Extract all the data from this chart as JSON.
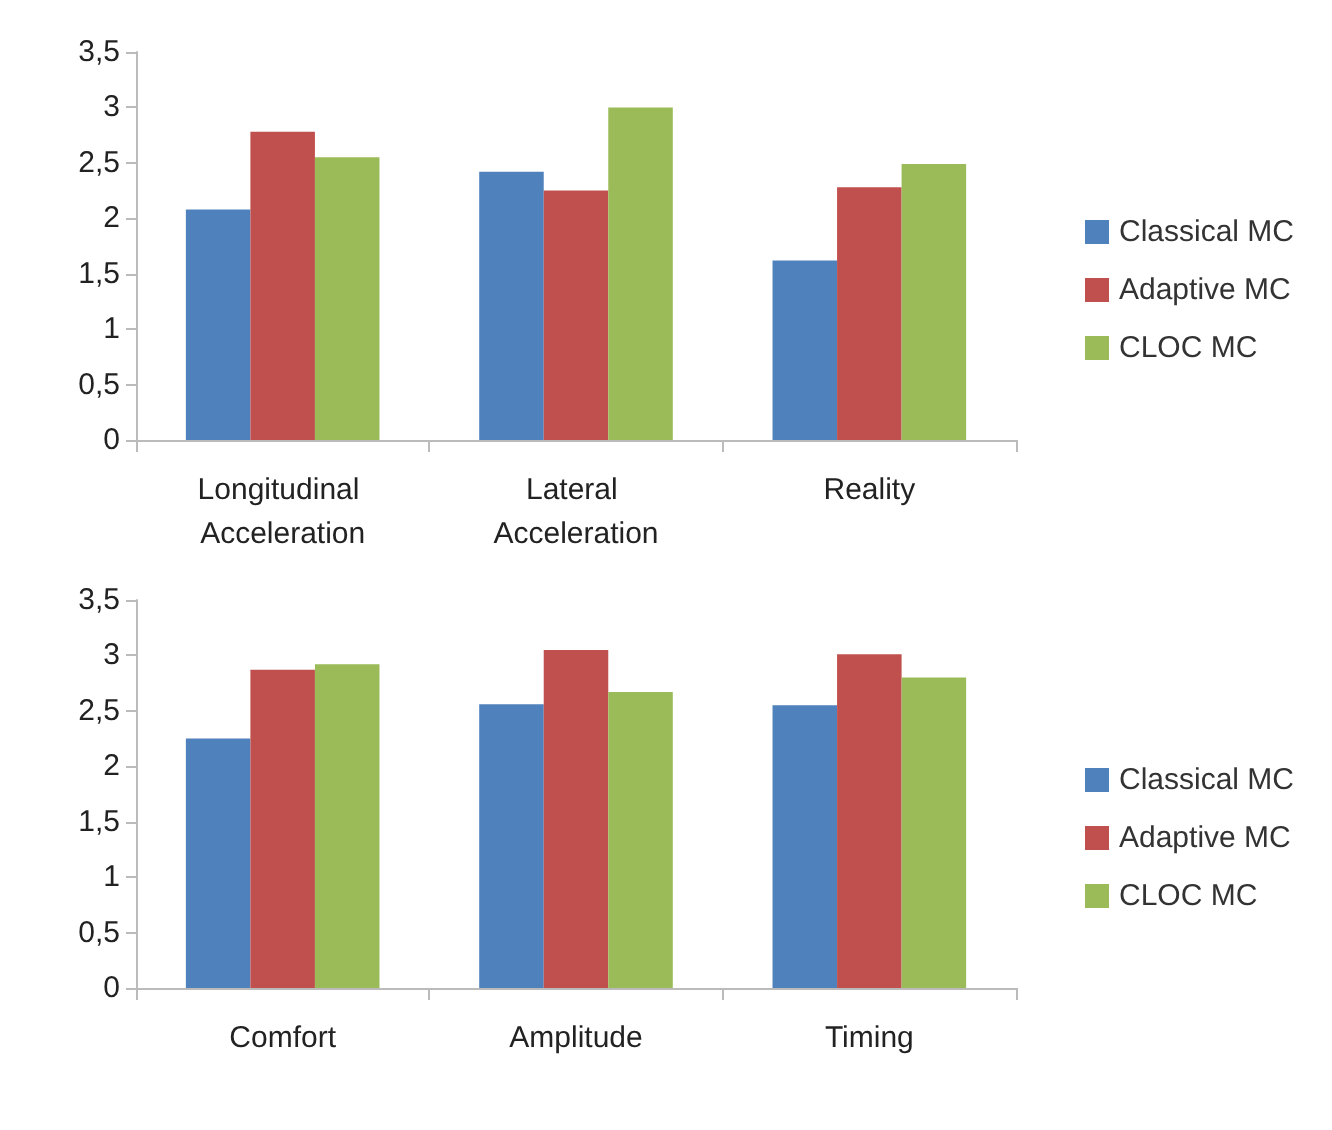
{
  "chart_data": [
    {
      "type": "bar",
      "categories": [
        "Longitudinal Acceleration",
        "Lateral Acceleration",
        "Reality"
      ],
      "series": [
        {
          "name": "Classical MC",
          "color": "#4f81bd",
          "values": [
            2.08,
            2.42,
            1.62
          ]
        },
        {
          "name": "Adaptive MC",
          "color": "#c0504d",
          "values": [
            2.78,
            2.25,
            2.28
          ]
        },
        {
          "name": "CLOC MC",
          "color": "#9bbb59",
          "values": [
            2.55,
            3.0,
            2.49
          ]
        }
      ],
      "ylim": [
        0,
        3.5
      ],
      "yticks": [
        0,
        {
          "value": 0.5,
          "label": "0,5"
        },
        1,
        {
          "value": 1.5,
          "label": "1,5"
        },
        2,
        {
          "value": 2.5,
          "label": "2,5"
        },
        3,
        {
          "value": 3.5,
          "label": "3,5"
        }
      ],
      "grid": false,
      "legend": "right"
    },
    {
      "type": "bar",
      "categories": [
        "Comfort",
        "Amplitude",
        "Timing"
      ],
      "series": [
        {
          "name": "Classical MC",
          "color": "#4f81bd",
          "values": [
            2.25,
            2.56,
            2.55
          ]
        },
        {
          "name": "Adaptive MC",
          "color": "#c0504d",
          "values": [
            2.87,
            3.05,
            3.01
          ]
        },
        {
          "name": "CLOC MC",
          "color": "#9bbb59",
          "values": [
            2.92,
            2.67,
            2.8
          ]
        }
      ],
      "ylim": [
        0,
        3.5
      ],
      "yticks": [
        0,
        {
          "value": 0.5,
          "label": "0,5"
        },
        1,
        {
          "value": 1.5,
          "label": "1,5"
        },
        2,
        {
          "value": 2.5,
          "label": "2,5"
        },
        3,
        {
          "value": 3.5,
          "label": "3,5"
        }
      ],
      "grid": false,
      "legend": "right"
    }
  ]
}
